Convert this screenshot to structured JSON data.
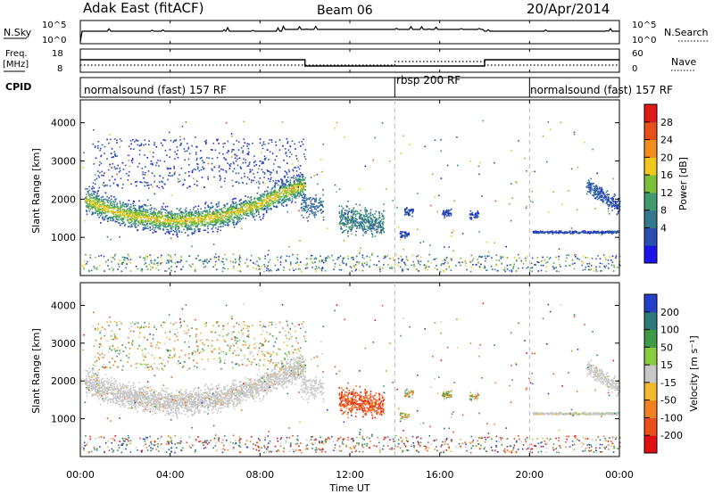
{
  "header": {
    "radar": "Adak East (fitACF)",
    "beam": "Beam 06",
    "date": "20/Apr/2014"
  },
  "noise_panel": {
    "left_label": "N.Sky",
    "right_label": "N.Search",
    "left_ticks": [
      "10^5",
      "10^0"
    ],
    "right_ticks": [
      "10^5",
      "10^0"
    ]
  },
  "freq_panel": {
    "left_label_1": "Freq.",
    "left_label_2": "[MHz]",
    "right_label": "Nave",
    "left_ticks": [
      "18",
      "8"
    ],
    "right_ticks": [
      "60",
      "0"
    ]
  },
  "cpid_panel": {
    "label": "CPID",
    "modes": [
      {
        "name": "normalsound (fast) 157 RF",
        "start_hour": 0,
        "end_hour": 14
      },
      {
        "name": "rbsp 200 RF",
        "start_hour": 14,
        "end_hour": 20
      },
      {
        "name": "normalsound (fast) 157 RF",
        "start_hour": 20,
        "end_hour": 24
      }
    ]
  },
  "x_axis": {
    "title": "Time UT",
    "ticks": [
      "00:00",
      "04:00",
      "08:00",
      "12:00",
      "16:00",
      "20:00",
      "00:00"
    ]
  },
  "power_colorbar": {
    "title": "Power [dB]",
    "ticks": [
      "28",
      "24",
      "20",
      "16",
      "12",
      "8",
      "4"
    ],
    "colors": [
      "#1a14e8",
      "#2b4fb0",
      "#34788e",
      "#3f9a6e",
      "#7bbf3a",
      "#f0c81e",
      "#f28c1a",
      "#e8501a",
      "#e01a14"
    ]
  },
  "velocity_colorbar": {
    "title": "Velocity [m s⁻¹]",
    "ticks": [
      "200",
      "100",
      "50",
      "15",
      "-15",
      "-50",
      "-100",
      "-200"
    ],
    "colors": [
      "#2440c8",
      "#2e7a78",
      "#3f9a46",
      "#88cc40",
      "#c8c8c8",
      "#f2b830",
      "#f28020",
      "#ec5018",
      "#e01010"
    ]
  },
  "chart_data": [
    {
      "type": "heatmap",
      "title": "",
      "xlabel": "Time UT",
      "ylabel": "Slant Range [km]",
      "x_range_hours": [
        0,
        24
      ],
      "ylim": [
        0,
        4600
      ],
      "yticks": [
        1000,
        2000,
        3000,
        4000
      ],
      "colorbar": "Power [dB]",
      "features": [
        {
          "name": "main-arc",
          "t_start": 0.2,
          "t_end": 10.0,
          "range_center": [
            2000,
            1750,
            1600,
            1500,
            1450,
            1470,
            1550,
            1700,
            1900,
            2200,
            2400
          ],
          "peak_db": 20
        },
        {
          "name": "mid-patch",
          "t_start": 11.5,
          "t_end": 13.5,
          "range_center": [
            1800,
            1700,
            1600,
            1500
          ],
          "peak_db": 12
        },
        {
          "name": "late-patch",
          "t_start": 22.5,
          "t_end": 24.0,
          "range_center": [
            2100,
            2000,
            1800,
            1700
          ],
          "peak_db": 8
        }
      ]
    },
    {
      "type": "heatmap",
      "title": "",
      "xlabel": "Time UT",
      "ylabel": "Slant Range [km]",
      "x_range_hours": [
        0,
        24
      ],
      "ylim": [
        0,
        4600
      ],
      "yticks": [
        1000,
        2000,
        3000,
        4000
      ],
      "colorbar": "Velocity [m s⁻¹]",
      "features": [
        {
          "name": "ground-scatter-arc",
          "t_start": 0.2,
          "t_end": 10.0,
          "velocity": 0
        },
        {
          "name": "negative-velocity-patch",
          "t_start": 11.8,
          "t_end": 13.2,
          "velocity": -100
        }
      ]
    }
  ]
}
